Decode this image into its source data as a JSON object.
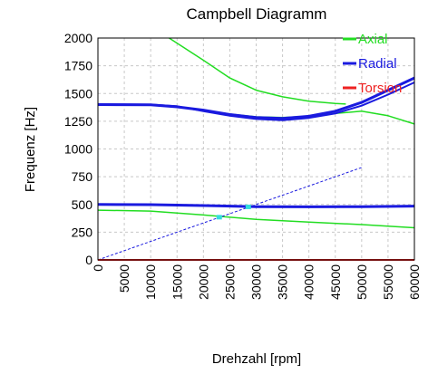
{
  "chart_data": {
    "type": "line",
    "title": "Campbell Diagramm",
    "xlabel": "Drehzahl [rpm]",
    "ylabel": "Frequenz [Hz]",
    "xlim": [
      0,
      60000
    ],
    "ylim": [
      0,
      2000
    ],
    "xticks": [
      "0",
      "5000",
      "10000",
      "15000",
      "20000",
      "25000",
      "30000",
      "35000",
      "40000",
      "45000",
      "50000",
      "55000",
      "60000"
    ],
    "yticks": [
      "0",
      "250",
      "500",
      "750",
      "1000",
      "1250",
      "1500",
      "1750",
      "2000"
    ],
    "grid": true,
    "legend_position": "top-right",
    "series": [
      {
        "name": "Axial",
        "color": "#22dd22",
        "width": 1.5,
        "values": [
          [
            0,
            448
          ],
          [
            10000,
            440
          ],
          [
            20000,
            405
          ],
          [
            30000,
            365
          ],
          [
            40000,
            340
          ],
          [
            50000,
            318
          ],
          [
            60000,
            290
          ]
        ]
      },
      {
        "name": "",
        "color": "#22dd22",
        "width": 1.5,
        "values": [
          [
            13500,
            2000
          ],
          [
            20000,
            1800
          ],
          [
            25000,
            1640
          ],
          [
            30000,
            1530
          ],
          [
            35000,
            1470
          ],
          [
            40000,
            1430
          ],
          [
            45000,
            1410
          ],
          [
            47000,
            1405
          ]
        ]
      },
      {
        "name": "",
        "color": "#22dd22",
        "width": 1.5,
        "values": [
          [
            0,
            1400
          ],
          [
            10000,
            1395
          ],
          [
            15000,
            1380
          ],
          [
            20000,
            1350
          ],
          [
            25000,
            1315
          ],
          [
            30000,
            1290
          ],
          [
            35000,
            1283
          ],
          [
            40000,
            1295
          ],
          [
            45000,
            1320
          ],
          [
            50000,
            1340
          ],
          [
            55000,
            1300
          ],
          [
            60000,
            1225
          ]
        ]
      },
      {
        "name": "Radial",
        "color": "#1a1adf",
        "width": 3,
        "values": [
          [
            0,
            500
          ],
          [
            10000,
            498
          ],
          [
            20000,
            490
          ],
          [
            30000,
            480
          ],
          [
            40000,
            478
          ],
          [
            50000,
            480
          ],
          [
            60000,
            485
          ]
        ]
      },
      {
        "name": "",
        "color": "#1a1adf",
        "width": 3,
        "values": [
          [
            0,
            1400
          ],
          [
            10000,
            1398
          ],
          [
            15000,
            1380
          ],
          [
            20000,
            1350
          ],
          [
            25000,
            1310
          ],
          [
            30000,
            1283
          ],
          [
            35000,
            1275
          ],
          [
            40000,
            1295
          ],
          [
            45000,
            1340
          ],
          [
            50000,
            1420
          ],
          [
            55000,
            1530
          ],
          [
            60000,
            1640
          ]
        ]
      },
      {
        "name": "",
        "color": "#1a1adf",
        "width": 2,
        "values": [
          [
            0,
            1405
          ],
          [
            10000,
            1400
          ],
          [
            15000,
            1385
          ],
          [
            20000,
            1340
          ],
          [
            25000,
            1300
          ],
          [
            30000,
            1270
          ],
          [
            35000,
            1260
          ],
          [
            40000,
            1280
          ],
          [
            45000,
            1320
          ],
          [
            50000,
            1390
          ],
          [
            55000,
            1490
          ],
          [
            60000,
            1600
          ]
        ]
      },
      {
        "name": "",
        "color": "#1a1adf",
        "width": 1,
        "dashed": true,
        "values": [
          [
            0,
            0
          ],
          [
            50000,
            833
          ]
        ]
      },
      {
        "name": "Torsion",
        "color": "#ee2222",
        "width": 2,
        "values": [
          [
            0,
            0
          ],
          [
            60000,
            0
          ]
        ]
      }
    ],
    "markers": [
      {
        "x": 23000,
        "y": 385,
        "color": "#33dddd"
      },
      {
        "x": 28500,
        "y": 478,
        "color": "#33dddd"
      }
    ]
  }
}
